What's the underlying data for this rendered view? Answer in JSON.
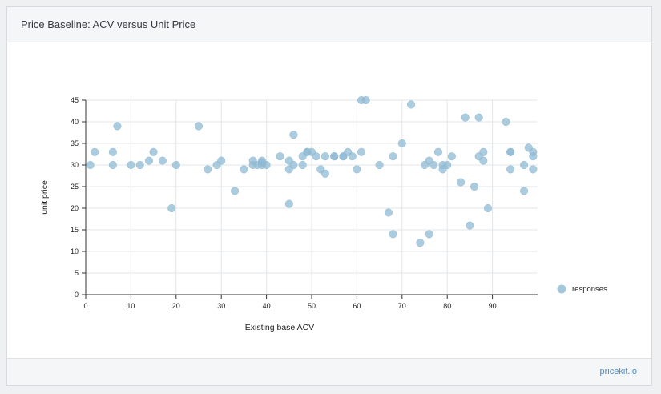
{
  "card": {
    "title": "Price Baseline: ACV versus Unit Price",
    "footer_link": "pricekit.io"
  },
  "chart_data": {
    "type": "scatter",
    "xlabel": "Existing base ACV",
    "ylabel": "unit price",
    "xlim": [
      0,
      100
    ],
    "ylim": [
      0,
      45
    ],
    "xticks": [
      "0",
      "10",
      "20",
      "30",
      "40",
      "50",
      "60",
      "70",
      "80",
      "90"
    ],
    "yticks": [
      "0",
      "5",
      "10",
      "15",
      "20",
      "25",
      "30",
      "35",
      "40",
      "45"
    ],
    "grid": true,
    "legend": "right",
    "series": [
      {
        "name": "responses",
        "color": "#8fb9d3",
        "points": [
          [
            1,
            30
          ],
          [
            2,
            33
          ],
          [
            6,
            33
          ],
          [
            6,
            30
          ],
          [
            7,
            39
          ],
          [
            10,
            30
          ],
          [
            12,
            30
          ],
          [
            14,
            31
          ],
          [
            15,
            33
          ],
          [
            17,
            31
          ],
          [
            19,
            20
          ],
          [
            20,
            30
          ],
          [
            25,
            39
          ],
          [
            27,
            29
          ],
          [
            29,
            30
          ],
          [
            30,
            31
          ],
          [
            33,
            24
          ],
          [
            35,
            29
          ],
          [
            37,
            31
          ],
          [
            37,
            30
          ],
          [
            38,
            30
          ],
          [
            39,
            31
          ],
          [
            39,
            30.5
          ],
          [
            39,
            30
          ],
          [
            40,
            30
          ],
          [
            43,
            32
          ],
          [
            45,
            31
          ],
          [
            45,
            29
          ],
          [
            45,
            21
          ],
          [
            46,
            37
          ],
          [
            46,
            30
          ],
          [
            48,
            30
          ],
          [
            48,
            32
          ],
          [
            49,
            33
          ],
          [
            49,
            33
          ],
          [
            50,
            33
          ],
          [
            51,
            32
          ],
          [
            52,
            29
          ],
          [
            53,
            28
          ],
          [
            53,
            32
          ],
          [
            55,
            32
          ],
          [
            55,
            32
          ],
          [
            57,
            32
          ],
          [
            57,
            32
          ],
          [
            58,
            33
          ],
          [
            59,
            32
          ],
          [
            60,
            29
          ],
          [
            61,
            33
          ],
          [
            61,
            45
          ],
          [
            62,
            45
          ],
          [
            65,
            30
          ],
          [
            67,
            19
          ],
          [
            68,
            14
          ],
          [
            68,
            32
          ],
          [
            70,
            35
          ],
          [
            72,
            44
          ],
          [
            74,
            12
          ],
          [
            75,
            30
          ],
          [
            76,
            14
          ],
          [
            76,
            31
          ],
          [
            77,
            30
          ],
          [
            78,
            33
          ],
          [
            79,
            29
          ],
          [
            79,
            30
          ],
          [
            80,
            30
          ],
          [
            81,
            32
          ],
          [
            83,
            26
          ],
          [
            84,
            41
          ],
          [
            85,
            16
          ],
          [
            86,
            25
          ],
          [
            87,
            41
          ],
          [
            87,
            32
          ],
          [
            88,
            33
          ],
          [
            88,
            31
          ],
          [
            89,
            20
          ],
          [
            93,
            40
          ],
          [
            94,
            29
          ],
          [
            94,
            33
          ],
          [
            94,
            33
          ],
          [
            97,
            24
          ],
          [
            97,
            30
          ],
          [
            98,
            34
          ],
          [
            99,
            32
          ],
          [
            99,
            33
          ],
          [
            99,
            29
          ]
        ]
      }
    ]
  }
}
